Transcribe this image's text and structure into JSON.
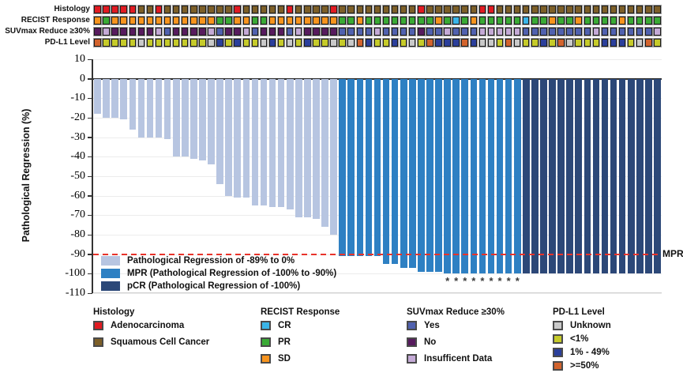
{
  "tracks": {
    "rows": [
      {
        "key": "histology",
        "label": "Histology"
      },
      {
        "key": "recist",
        "label": "RECIST Response"
      },
      {
        "key": "suvmax",
        "label": "SUVmax Reduce ≥30%"
      },
      {
        "key": "pdl1",
        "label": "PD-L1 Level"
      }
    ],
    "histology": [
      "A",
      "A",
      "A",
      "A",
      "A",
      "S",
      "S",
      "A",
      "S",
      "S",
      "S",
      "S",
      "S",
      "S",
      "S",
      "S",
      "A",
      "S",
      "S",
      "S",
      "S",
      "S",
      "A",
      "S",
      "S",
      "S",
      "S",
      "A",
      "S",
      "S",
      "S",
      "S",
      "S",
      "S",
      "S",
      "S",
      "S",
      "A",
      "S",
      "S",
      "S",
      "S",
      "S",
      "S",
      "A",
      "A",
      "S",
      "S",
      "S",
      "S",
      "S",
      "S",
      "S",
      "S",
      "S",
      "S",
      "S",
      "S",
      "S",
      "S",
      "S",
      "S",
      "S",
      "S",
      "S"
    ],
    "recist": [
      "SD",
      "PR",
      "SD",
      "SD",
      "SD",
      "SD",
      "SD",
      "SD",
      "SD",
      "SD",
      "SD",
      "SD",
      "SD",
      "SD",
      "PR",
      "PR",
      "SD",
      "SD",
      "PR",
      "PR",
      "SD",
      "SD",
      "SD",
      "SD",
      "SD",
      "SD",
      "SD",
      "SD",
      "PR",
      "PR",
      "SD",
      "PR",
      "PR",
      "PR",
      "PR",
      "PR",
      "PR",
      "PR",
      "PR",
      "SD",
      "PR",
      "CR",
      "PR",
      "SD",
      "PR",
      "PR",
      "PR",
      "PR",
      "PR",
      "CR",
      "PR",
      "PR",
      "SD",
      "PR",
      "PR",
      "SD",
      "PR",
      "PR",
      "PR",
      "PR",
      "SD",
      "PR",
      "PR",
      "PR",
      "PR"
    ],
    "suvmax": [
      "No",
      "ID",
      "No",
      "No",
      "No",
      "No",
      "No",
      "ID",
      "Yes",
      "No",
      "No",
      "No",
      "No",
      "ID",
      "Yes",
      "No",
      "No",
      "ID",
      "Yes",
      "No",
      "No",
      "No",
      "Yes",
      "ID",
      "No",
      "No",
      "No",
      "No",
      "Yes",
      "Yes",
      "Yes",
      "Yes",
      "ID",
      "Yes",
      "Yes",
      "Yes",
      "Yes",
      "No",
      "Yes",
      "Yes",
      "ID",
      "Yes",
      "Yes",
      "Yes",
      "ID",
      "ID",
      "ID",
      "ID",
      "ID",
      "Yes",
      "Yes",
      "Yes",
      "Yes",
      "Yes",
      "Yes",
      "Yes",
      "Yes",
      "ID",
      "Yes",
      "Yes",
      "Yes",
      "Yes",
      "Yes",
      "Yes",
      "ID"
    ],
    "pdl1": [
      "O",
      "Y",
      "Y",
      "Y",
      "Y",
      "U",
      "Y",
      "Y",
      "Y",
      "Y",
      "Y",
      "Y",
      "Y",
      "U",
      "B",
      "Y",
      "B",
      "Y",
      "Y",
      "U",
      "B",
      "Y",
      "U",
      "Y",
      "B",
      "Y",
      "Y",
      "U",
      "Y",
      "U",
      "O",
      "B",
      "Y",
      "Y",
      "B",
      "Y",
      "U",
      "Y",
      "O",
      "B",
      "B",
      "B",
      "O",
      "B",
      "U",
      "U",
      "Y",
      "O",
      "U",
      "Y",
      "Y",
      "B",
      "Y",
      "O",
      "U",
      "Y",
      "Y",
      "Y",
      "B",
      "B",
      "B",
      "Y",
      "U",
      "O",
      "Y"
    ],
    "palette": {
      "histology": {
        "A": "#e11b22",
        "S": "#7d5f28"
      },
      "recist": {
        "CR": "#3ab5e8",
        "PR": "#3aaa35",
        "SD": "#f7941e"
      },
      "suvmax": {
        "Yes": "#5061af",
        "No": "#571b5e",
        "ID": "#c4aad6"
      },
      "pdl1": {
        "U": "#c9c9c9",
        "Y": "#c6cb2a",
        "B": "#2b3f9b",
        "O": "#d2632d"
      }
    }
  },
  "chart_data": {
    "type": "bar",
    "subtype": "waterfall",
    "ylabel": "Pathological Regression (%)",
    "ylim": [
      -110,
      10
    ],
    "yticks": [
      10,
      0,
      -10,
      -20,
      -30,
      -40,
      -50,
      -60,
      -70,
      -80,
      -90,
      -100,
      -110
    ],
    "grid": "horizontal",
    "n_patients": 65,
    "values": [
      -18,
      -20,
      -20,
      -21,
      -26,
      -30,
      -30,
      -30,
      -31,
      -40,
      -40,
      -41,
      -42,
      -44,
      -54,
      -60,
      -61,
      -61,
      -65,
      -65,
      -66,
      -66,
      -67,
      -71,
      -71,
      -72,
      -76,
      -80,
      -91,
      -91,
      -91,
      -91,
      -91,
      -95,
      -95,
      -97,
      -97,
      -99,
      -99,
      -99,
      -100,
      -100,
      -100,
      -100,
      -100,
      -100,
      -100,
      -100,
      -100,
      -100,
      -100,
      -100,
      -100,
      -100,
      -100,
      -100,
      -100,
      -100,
      -100,
      -100,
      -100,
      -100,
      -100,
      -100,
      -100
    ],
    "groups_rle": [
      [
        "PR089",
        28
      ],
      [
        "MPR",
        21
      ],
      [
        "pCR",
        16
      ]
    ],
    "bar_colors": {
      "PR089": "#b7c5e1",
      "MPR": "#2e80c3",
      "pCR": "#2c4878"
    },
    "asterisk_bars": [
      41,
      42,
      43,
      44,
      45,
      46,
      47,
      48,
      49
    ],
    "asterisk_glyph": "*",
    "reference_line": {
      "value": -90,
      "color": "#e8332a",
      "label": "MPR"
    },
    "legend": [
      {
        "key": "PR089",
        "label": "Pathological Regression of -89% to 0%"
      },
      {
        "key": "MPR",
        "label": "MPR (Pathological Regression of -100% to -90%)"
      },
      {
        "key": "pCR",
        "label": "pCR (Pathological Regression of -100%)"
      }
    ]
  },
  "bottom_legends": [
    {
      "title": "Histology",
      "items": [
        {
          "label": "Adenocarcinoma",
          "color": "#e11b22"
        },
        {
          "label": "Squamous Cell Cancer",
          "color": "#7d5f28"
        }
      ]
    },
    {
      "title": "RECIST Response",
      "items": [
        {
          "label": "CR",
          "color": "#3ab5e8"
        },
        {
          "label": "PR",
          "color": "#3aaa35"
        },
        {
          "label": "SD",
          "color": "#f7941e"
        }
      ]
    },
    {
      "title": "SUVmax Reduce ≥30%",
      "items": [
        {
          "label": "Yes",
          "color": "#5061af"
        },
        {
          "label": "No",
          "color": "#571b5e"
        },
        {
          "label": "Insufficent Data",
          "color": "#c4aad6"
        }
      ]
    },
    {
      "title": "PD-L1 Level",
      "items": [
        {
          "label": "Unknown",
          "color": "#c9c9c9"
        },
        {
          "label": "<1%",
          "color": "#c6cb2a"
        },
        {
          "label": "1% - 49%",
          "color": "#2b3f9b"
        },
        {
          "label": ">=50%",
          "color": "#d2632d"
        }
      ]
    }
  ]
}
